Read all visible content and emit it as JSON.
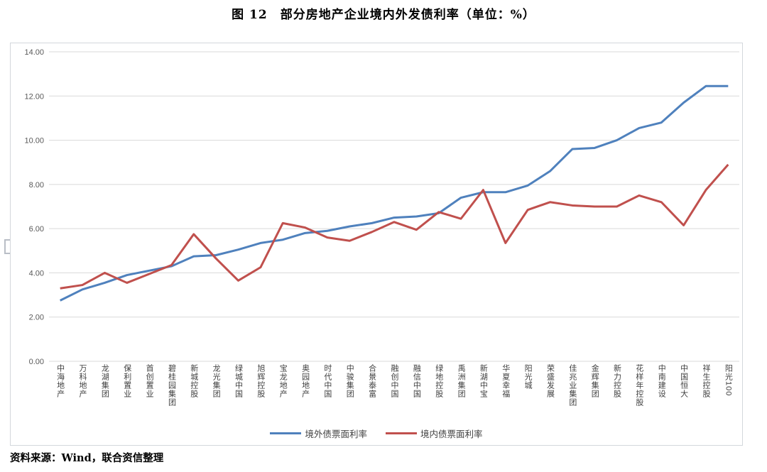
{
  "title": "图 12　部分房地产企业境内外发债利率（单位：%）",
  "source": "资料来源：Wind，联合资信整理",
  "colors": {
    "series_outbound": "#4F81BD",
    "series_domestic": "#C0504D",
    "gridline": "#D9D9D9",
    "axis_text": "#595959",
    "xlabel_text": "#3f3f3f"
  },
  "chart_data": {
    "type": "line",
    "title": "图 12　部分房地产企业境内外发债利率（单位：%）",
    "categories": [
      "中海地产",
      "万科地产",
      "龙湖集团",
      "保利置业",
      "首创置业",
      "碧桂园集团",
      "新城控股",
      "龙光集团",
      "绿城中国",
      "旭辉控股",
      "宝龙地产",
      "奥园地产",
      "时代中国",
      "中骏集团",
      "合景泰富",
      "融创中国",
      "融信中国",
      "绿地控股",
      "禹洲集团",
      "新湖中宝",
      "华夏幸福",
      "阳光城",
      "荣盛发展",
      "佳兆业集团",
      "金辉集团",
      "新力控股",
      "花样年控股",
      "中南建设",
      "中国恒大",
      "祥生控股",
      "阳光100"
    ],
    "series": [
      {
        "name": "境外债票面利率",
        "color": "#4F81BD",
        "values": [
          2.75,
          3.25,
          3.55,
          3.9,
          4.1,
          4.3,
          4.75,
          4.8,
          5.05,
          5.35,
          5.5,
          5.8,
          5.9,
          6.1,
          6.25,
          6.5,
          6.55,
          6.7,
          7.4,
          7.65,
          7.65,
          7.95,
          8.6,
          9.6,
          9.65,
          10.0,
          10.55,
          10.8,
          11.7,
          12.45,
          12.45
        ]
      },
      {
        "name": "境内债票面利率",
        "color": "#C0504D",
        "values": [
          3.3,
          3.45,
          4.0,
          3.55,
          3.95,
          4.35,
          5.75,
          4.65,
          3.65,
          4.25,
          6.25,
          6.05,
          5.6,
          5.45,
          5.85,
          6.3,
          5.95,
          6.75,
          6.45,
          7.75,
          5.35,
          6.85,
          7.2,
          7.05,
          7.0,
          7.0,
          7.5,
          7.2,
          6.15,
          7.75,
          8.9
        ]
      }
    ],
    "xlabel": "",
    "ylabel": "",
    "ylim": [
      0,
      14
    ],
    "ytick_interval": 2,
    "yticks": [
      "0.00",
      "2.00",
      "4.00",
      "6.00",
      "8.00",
      "10.00",
      "12.00",
      "14.00"
    ],
    "grid": true,
    "legend_position": "bottom"
  }
}
